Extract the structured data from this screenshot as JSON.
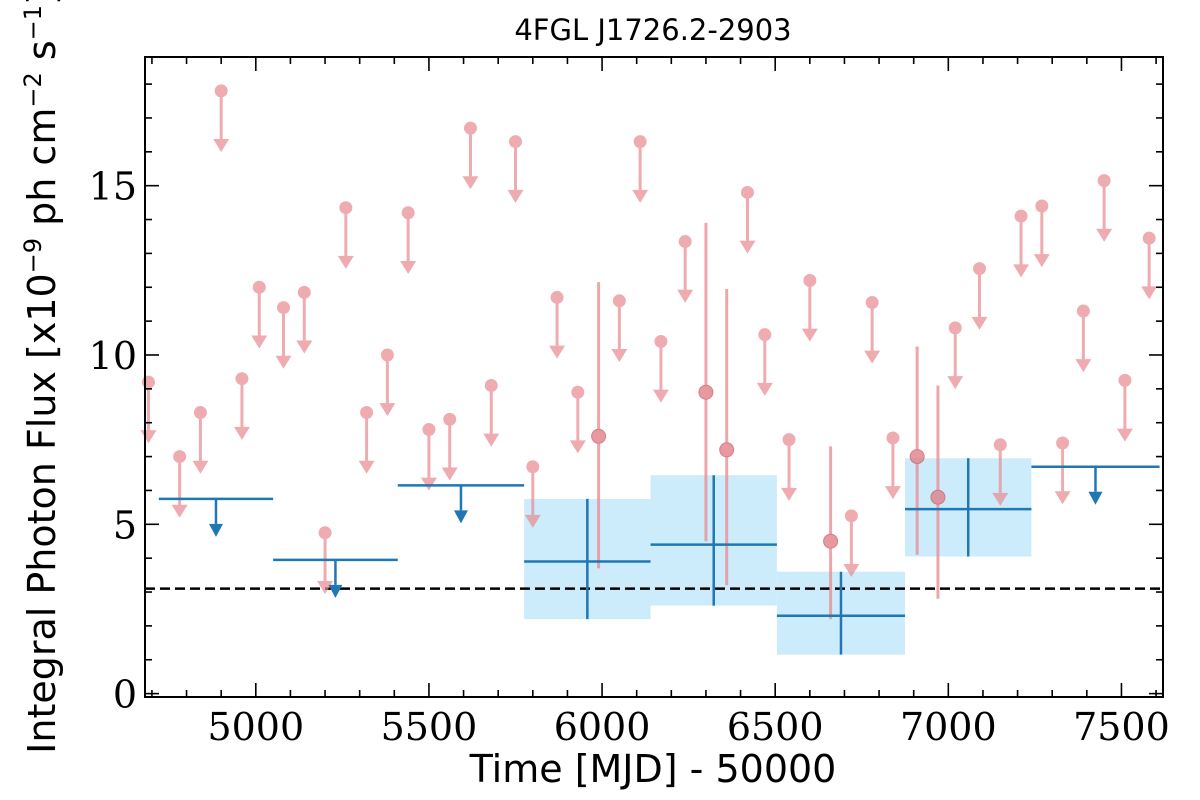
{
  "chart_data": {
    "type": "scatter",
    "title": "4FGL J1726.2-2903",
    "xlabel": "Time [MJD] - 50000",
    "ylabel": "Integral Photon Flux [x10",
    "ylabel_exp1": "−9",
    "ylabel_unit": " ph cm",
    "ylabel_exp2": "−2",
    "ylabel_unit2": " s",
    "ylabel_exp3": "−1",
    "ylabel_end": "]",
    "xlim": [
      4680,
      7620
    ],
    "ylim": [
      -0.1,
      18.8
    ],
    "xticks": [
      5000,
      5500,
      6000,
      6500,
      7000,
      7500
    ],
    "yticks": [
      0,
      5,
      10,
      15
    ],
    "grid": false,
    "baseline_flux": 3.1,
    "short_bins": {
      "color": "#e88a8f",
      "upper_limits": [
        {
          "x": 4690,
          "y": 9.2
        },
        {
          "x": 4780,
          "y": 7.0
        },
        {
          "x": 4840,
          "y": 8.3
        },
        {
          "x": 4900,
          "y": 17.8
        },
        {
          "x": 4960,
          "y": 9.3
        },
        {
          "x": 5010,
          "y": 12.0
        },
        {
          "x": 5080,
          "y": 11.4
        },
        {
          "x": 5140,
          "y": 11.85
        },
        {
          "x": 5200,
          "y": 4.75
        },
        {
          "x": 5260,
          "y": 14.35
        },
        {
          "x": 5320,
          "y": 8.3
        },
        {
          "x": 5380,
          "y": 10.0
        },
        {
          "x": 5440,
          "y": 14.2
        },
        {
          "x": 5500,
          "y": 7.8
        },
        {
          "x": 5560,
          "y": 8.1
        },
        {
          "x": 5620,
          "y": 16.7
        },
        {
          "x": 5680,
          "y": 9.1
        },
        {
          "x": 5750,
          "y": 16.3
        },
        {
          "x": 5800,
          "y": 6.7
        },
        {
          "x": 5870,
          "y": 11.7
        },
        {
          "x": 5930,
          "y": 8.9
        },
        {
          "x": 6050,
          "y": 11.6
        },
        {
          "x": 6110,
          "y": 16.3
        },
        {
          "x": 6170,
          "y": 10.4
        },
        {
          "x": 6240,
          "y": 13.35
        },
        {
          "x": 6420,
          "y": 14.8
        },
        {
          "x": 6470,
          "y": 10.6
        },
        {
          "x": 6540,
          "y": 7.5
        },
        {
          "x": 6600,
          "y": 12.2
        },
        {
          "x": 6720,
          "y": 5.25
        },
        {
          "x": 6780,
          "y": 11.55
        },
        {
          "x": 6840,
          "y": 7.55
        },
        {
          "x": 7020,
          "y": 10.8
        },
        {
          "x": 7090,
          "y": 12.55
        },
        {
          "x": 7150,
          "y": 7.35
        },
        {
          "x": 7210,
          "y": 14.1
        },
        {
          "x": 7270,
          "y": 14.4
        },
        {
          "x": 7330,
          "y": 7.4
        },
        {
          "x": 7390,
          "y": 11.3
        },
        {
          "x": 7450,
          "y": 15.15
        },
        {
          "x": 7510,
          "y": 9.25
        },
        {
          "x": 7580,
          "y": 13.45
        }
      ],
      "detections": [
        {
          "x": 5990,
          "y": 7.6,
          "ylo": 3.7,
          "yhi": 12.15
        },
        {
          "x": 6300,
          "y": 8.9,
          "ylo": 4.5,
          "yhi": 13.9
        },
        {
          "x": 6360,
          "y": 7.2,
          "ylo": 3.2,
          "yhi": 11.95
        },
        {
          "x": 6660,
          "y": 4.5,
          "ylo": 2.2,
          "yhi": 7.3
        },
        {
          "x": 6910,
          "y": 7.0,
          "ylo": 4.1,
          "yhi": 10.25
        },
        {
          "x": 6970,
          "y": 5.8,
          "ylo": 2.8,
          "yhi": 9.1
        }
      ]
    },
    "long_bins": {
      "color": "#1f77b4",
      "band_color": "#cdecfb",
      "upper_limits": [
        {
          "x0": 4720,
          "x1": 5050,
          "y": 5.75
        },
        {
          "x0": 5050,
          "x1": 5410,
          "y": 3.95
        },
        {
          "x0": 5410,
          "x1": 5775,
          "y": 6.15
        },
        {
          "x0": 7240,
          "x1": 7610,
          "y": 6.7
        }
      ],
      "detections": [
        {
          "x0": 5775,
          "x1": 6140,
          "y": 3.9,
          "ylo": 2.2,
          "yhi": 5.75
        },
        {
          "x0": 6140,
          "x1": 6505,
          "y": 4.4,
          "ylo": 2.6,
          "yhi": 6.45
        },
        {
          "x0": 6505,
          "x1": 6875,
          "y": 2.3,
          "ylo": 1.15,
          "yhi": 3.6
        },
        {
          "x0": 6875,
          "x1": 7240,
          "y": 5.45,
          "ylo": 4.05,
          "yhi": 6.95
        }
      ]
    }
  }
}
